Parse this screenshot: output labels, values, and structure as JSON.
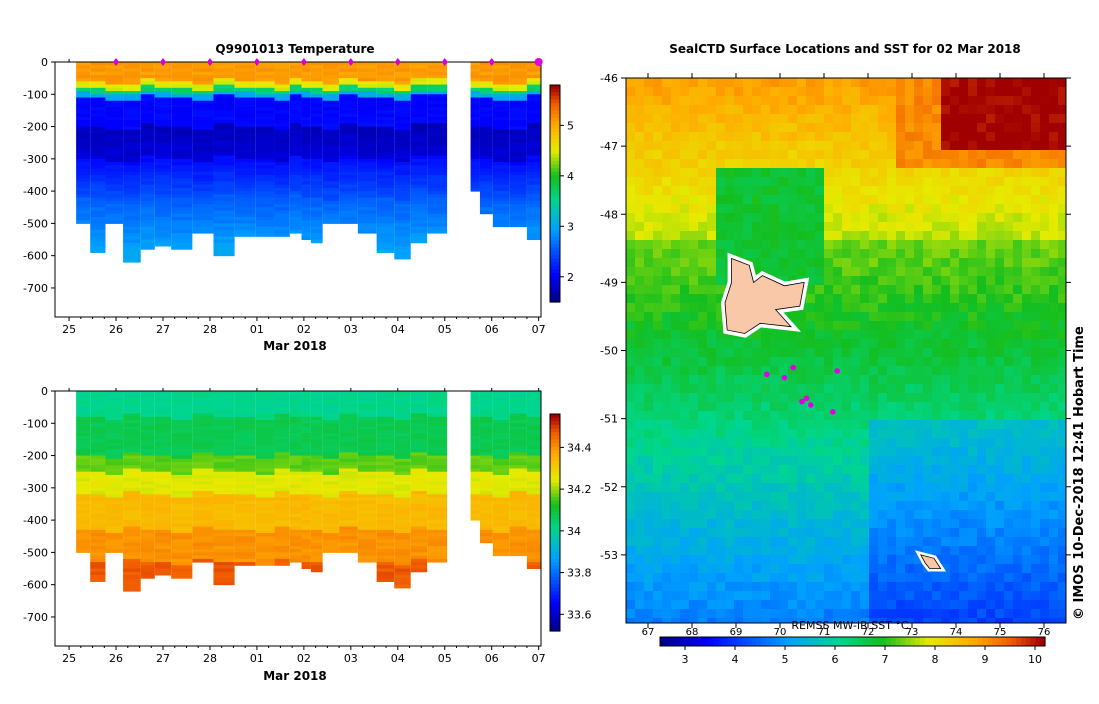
{
  "chart_data": [
    {
      "type": "heatmap",
      "title": "Q9901013  Temperature",
      "xlabel": "Mar 2018",
      "x_tick_labels": [
        "25",
        "26",
        "27",
        "28",
        "01",
        "02",
        "03",
        "04",
        "05",
        "06",
        "07"
      ],
      "y_tick_labels": [
        "0",
        "-100",
        "-200",
        "-300",
        "-400",
        "-500",
        "-600",
        "-700"
      ],
      "ylim": [
        -790,
        0
      ],
      "colorbar_ticks": [
        "2",
        "3",
        "4",
        "5"
      ],
      "colorbar_range": [
        1.5,
        5.8
      ],
      "profiles": [
        {
          "t": 25.3,
          "bottom": -500
        },
        {
          "t": 25.6,
          "bottom": -590
        },
        {
          "t": 25.95,
          "bottom": -500
        },
        {
          "t": 26.35,
          "bottom": -620
        },
        {
          "t": 26.7,
          "bottom": -580
        },
        {
          "t": 26.95,
          "bottom": -570
        },
        {
          "t": 27.4,
          "bottom": -580
        },
        {
          "t": 27.85,
          "bottom": -530
        },
        {
          "t": 28.3,
          "bottom": -600
        },
        {
          "t": 28.75,
          "bottom": -540
        },
        {
          "t": 29.2,
          "bottom": -540
        },
        {
          "t": 29.55,
          "bottom": -540
        },
        {
          "t": 29.85,
          "bottom": -530
        },
        {
          "t": 30.05,
          "bottom": -550
        },
        {
          "t": 30.25,
          "bottom": -560
        },
        {
          "t": 30.55,
          "bottom": -500
        },
        {
          "t": 30.95,
          "bottom": -500
        },
        {
          "t": 31.35,
          "bottom": -530
        },
        {
          "t": 31.75,
          "bottom": -590
        },
        {
          "t": 32.1,
          "bottom": -610
        },
        {
          "t": 32.45,
          "bottom": -560
        },
        {
          "t": 32.8,
          "bottom": -530
        }
      ],
      "gap_profiles": [
        {
          "t": 33.65,
          "bottom": -400
        },
        {
          "t": 33.85,
          "bottom": -470
        },
        {
          "t": 34.2,
          "bottom": -510
        },
        {
          "t": 34.55,
          "bottom": -510
        },
        {
          "t": 34.95,
          "bottom": -550
        }
      ]
    },
    {
      "type": "heatmap",
      "title": "",
      "xlabel": "Mar 2018",
      "x_tick_labels": [
        "25",
        "26",
        "27",
        "28",
        "01",
        "02",
        "03",
        "04",
        "05",
        "06",
        "07"
      ],
      "y_tick_labels": [
        "0",
        "-100",
        "-200",
        "-300",
        "-400",
        "-500",
        "-600",
        "-700"
      ],
      "ylim": [
        -790,
        0
      ],
      "colorbar_ticks": [
        "33.6",
        "33.8",
        "34",
        "34.2",
        "34.4"
      ],
      "colorbar_range": [
        33.52,
        34.56
      ]
    },
    {
      "type": "heatmap",
      "title": "SealCTD Surface Locations and SST for 02 Mar 2018",
      "y_tick_labels": [
        "-46",
        "-47",
        "-48",
        "-49",
        "-50",
        "-51",
        "-52",
        "-53"
      ],
      "ylim": [
        -54,
        -46
      ],
      "xlim": [
        66.5,
        76.5
      ],
      "colorbar_label": "REMSS MW-IR SST °C",
      "colorbar_top_ticks": [
        "67",
        "68",
        "69",
        "70",
        "71",
        "72",
        "73",
        "74",
        "75",
        "76"
      ],
      "colorbar_bottom_ticks": [
        "3",
        "4",
        "5",
        "6",
        "7",
        "8",
        "9",
        "10"
      ],
      "colorbar_range": [
        2.5,
        10.2
      ]
    }
  ],
  "credit": "© IMOS 10-Dec-2018 12:41 Hobart Time"
}
